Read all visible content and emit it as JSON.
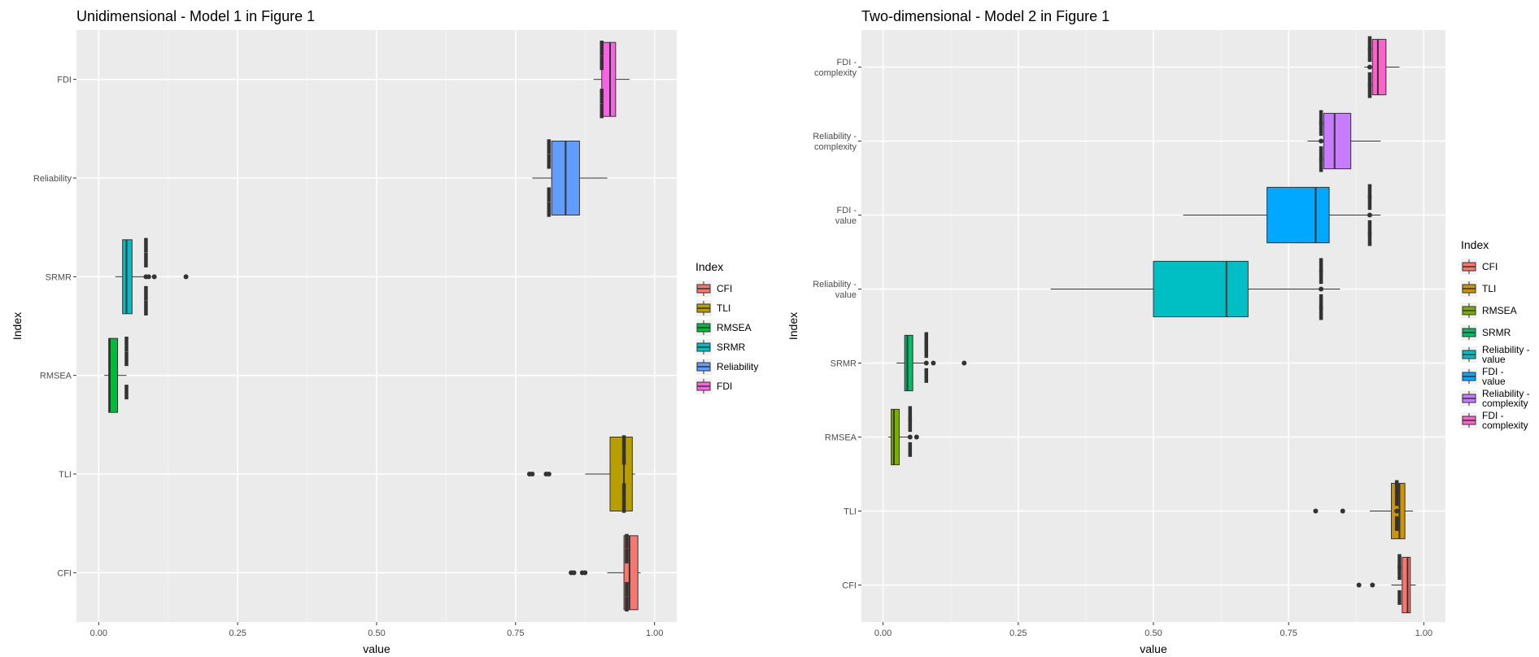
{
  "chart_data": [
    {
      "type": "box",
      "orientation": "horizontal",
      "title": "Unidimensional - Model 1 in Figure 1",
      "xlabel": "value",
      "ylabel": "Index",
      "xlim": [
        -0.04,
        1.04
      ],
      "xticks": [
        0.0,
        0.25,
        0.5,
        0.75,
        1.0
      ],
      "xtick_labels": [
        "0.00",
        "0.25",
        "0.50",
        "0.75",
        "1.00"
      ],
      "categories": [
        "FDI",
        "Reliability",
        "SRMR",
        "RMSEA",
        "TLI",
        "CFI"
      ],
      "grid": true,
      "legend": {
        "title": "Index",
        "position": "right",
        "items": [
          {
            "label": "CFI",
            "color": "#F8766D"
          },
          {
            "label": "TLI",
            "color": "#B79F00"
          },
          {
            "label": "RMSEA",
            "color": "#00BA38"
          },
          {
            "label": "SRMR",
            "color": "#00BFC4"
          },
          {
            "label": "Reliability",
            "color": "#619CFF"
          },
          {
            "label": "FDI",
            "color": "#F564E3"
          }
        ]
      },
      "boxes": [
        {
          "category": "FDI",
          "color": "#F564E3",
          "whisker_low": 0.89,
          "q1": 0.905,
          "median": 0.92,
          "q3": 0.93,
          "whisker_high": 0.955,
          "points": [
            0.905,
            0.905,
            0.905,
            0.905
          ],
          "outliers": []
        },
        {
          "category": "Reliability",
          "color": "#619CFF",
          "whisker_low": 0.78,
          "q1": 0.815,
          "median": 0.84,
          "q3": 0.865,
          "whisker_high": 0.915,
          "points": [
            0.81,
            0.81,
            0.81,
            0.81
          ],
          "outliers": []
        },
        {
          "category": "SRMR",
          "color": "#00BFC4",
          "whisker_low": 0.03,
          "q1": 0.043,
          "median": 0.05,
          "q3": 0.06,
          "whisker_high": 0.09,
          "points": [
            0.085,
            0.085,
            0.085,
            0.085
          ],
          "outliers": [
            0.085,
            0.09,
            0.1,
            0.157
          ]
        },
        {
          "category": "RMSEA",
          "color": "#00BA38",
          "whisker_low": 0.01,
          "q1": 0.018,
          "median": 0.02,
          "q3": 0.034,
          "whisker_high": 0.05,
          "points": [
            0.05,
            0.05,
            0.05
          ],
          "outliers": []
        },
        {
          "category": "TLI",
          "color": "#B79F00",
          "whisker_low": 0.875,
          "q1": 0.92,
          "median": 0.945,
          "q3": 0.96,
          "whisker_high": 0.965,
          "points": [
            0.945,
            0.945,
            0.945,
            0.945
          ],
          "outliers": [
            0.775,
            0.78,
            0.805,
            0.81
          ]
        },
        {
          "category": "CFI",
          "color": "#F8766D",
          "whisker_low": 0.915,
          "q1": 0.945,
          "median": 0.955,
          "q3": 0.97,
          "whisker_high": 0.975,
          "points": [
            0.95,
            0.95,
            0.95,
            0.95
          ],
          "outliers": [
            0.85,
            0.855,
            0.87,
            0.875
          ]
        }
      ]
    },
    {
      "type": "box",
      "orientation": "horizontal",
      "title": "Two-dimensional - Model 2 in Figure 1",
      "xlabel": "value",
      "ylabel": "Index",
      "xlim": [
        -0.04,
        1.04
      ],
      "xticks": [
        0.0,
        0.25,
        0.5,
        0.75,
        1.0
      ],
      "xtick_labels": [
        "0.00",
        "0.25",
        "0.50",
        "0.75",
        "1.00"
      ],
      "categories": [
        [
          "FDI -",
          "complexity"
        ],
        [
          "Reliability -",
          "complexity"
        ],
        [
          "FDI -",
          "value"
        ],
        [
          "Reliability -",
          "value"
        ],
        [
          "SRMR"
        ],
        [
          "RMSEA"
        ],
        [
          "TLI"
        ],
        [
          "CFI"
        ]
      ],
      "grid": true,
      "legend": {
        "title": "Index",
        "position": "right",
        "items": [
          {
            "label": [
              "CFI"
            ],
            "color": "#F8766D"
          },
          {
            "label": [
              "TLI"
            ],
            "color": "#CD9600"
          },
          {
            "label": [
              "RMSEA"
            ],
            "color": "#7CAE00"
          },
          {
            "label": [
              "SRMR"
            ],
            "color": "#00BE67"
          },
          {
            "label": [
              "Reliability -",
              "value"
            ],
            "color": "#00BFC4"
          },
          {
            "label": [
              "FDI -",
              "value"
            ],
            "color": "#00A9FF"
          },
          {
            "label": [
              "Reliability -",
              "complexity"
            ],
            "color": "#C77CFF"
          },
          {
            "label": [
              "FDI -",
              "complexity"
            ],
            "color": "#FF61CC"
          }
        ]
      },
      "boxes": [
        {
          "category": "FDI - complexity",
          "color": "#FF61CC",
          "whisker_low": 0.89,
          "q1": 0.905,
          "median": 0.915,
          "q3": 0.93,
          "whisker_high": 0.955,
          "points": [
            0.9,
            0.9,
            0.9,
            0.9
          ],
          "outliers": [
            0.9
          ]
        },
        {
          "category": "Reliability - complexity",
          "color": "#C77CFF",
          "whisker_low": 0.785,
          "q1": 0.815,
          "median": 0.835,
          "q3": 0.865,
          "whisker_high": 0.92,
          "points": [
            0.81,
            0.81,
            0.81,
            0.81
          ],
          "outliers": [
            0.81
          ]
        },
        {
          "category": "FDI - value",
          "color": "#00A9FF",
          "whisker_low": 0.555,
          "q1": 0.71,
          "median": 0.8,
          "q3": 0.825,
          "whisker_high": 0.92,
          "points": [
            0.9,
            0.9,
            0.9,
            0.9
          ],
          "outliers": [
            0.9
          ]
        },
        {
          "category": "Reliability - value",
          "color": "#00BFC4",
          "whisker_low": 0.31,
          "q1": 0.5,
          "median": 0.635,
          "q3": 0.675,
          "whisker_high": 0.845,
          "points": [
            0.81,
            0.81,
            0.81,
            0.81
          ],
          "outliers": [
            0.81
          ]
        },
        {
          "category": "SRMR",
          "color": "#00BE67",
          "whisker_low": 0.025,
          "q1": 0.04,
          "median": 0.045,
          "q3": 0.055,
          "whisker_high": 0.08,
          "points": [
            0.08,
            0.08,
            0.08
          ],
          "outliers": [
            0.08,
            0.093,
            0.15
          ]
        },
        {
          "category": "RMSEA",
          "color": "#7CAE00",
          "whisker_low": 0.01,
          "q1": 0.015,
          "median": 0.02,
          "q3": 0.03,
          "whisker_high": 0.05,
          "points": [
            0.05,
            0.05,
            0.05
          ],
          "outliers": [
            0.05,
            0.062
          ]
        },
        {
          "category": "TLI",
          "color": "#CD9600",
          "whisker_low": 0.9,
          "q1": 0.94,
          "median": 0.955,
          "q3": 0.965,
          "whisker_high": 0.98,
          "points": [
            0.95,
            0.95,
            0.95
          ],
          "outliers": [
            0.95,
            0.8,
            0.85
          ]
        },
        {
          "category": "CFI",
          "color": "#F8766D",
          "whisker_low": 0.94,
          "q1": 0.96,
          "median": 0.97,
          "q3": 0.975,
          "whisker_high": 0.985,
          "points": [
            0.955,
            0.955,
            0.955
          ],
          "outliers": [
            0.88,
            0.905
          ]
        }
      ]
    }
  ]
}
